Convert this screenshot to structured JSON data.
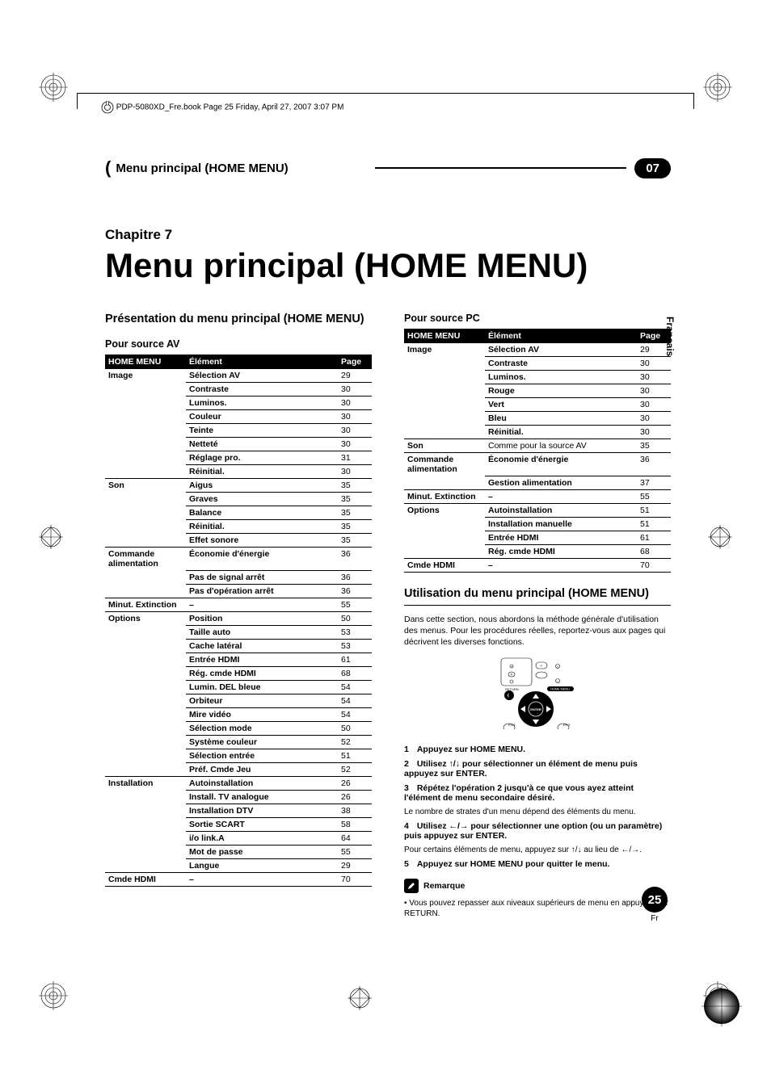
{
  "folio": "PDP-5080XD_Fre.book  Page 25  Friday, April 27, 2007  3:07 PM",
  "section_bar": {
    "title": "Menu principal (HOME MENU)",
    "chapter_num": "07"
  },
  "chapter": {
    "label": "Chapitre 7",
    "title": "Menu principal (HOME MENU)"
  },
  "lang_tab": "Français",
  "left": {
    "heading": "Présentation du menu principal (HOME MENU)",
    "sub_av": "Pour source AV",
    "table_av": {
      "cols": [
        "HOME MENU",
        "Élément",
        "Page"
      ],
      "groups": [
        {
          "cat": "Image",
          "rows": [
            [
              "Sélection AV",
              "29"
            ],
            [
              "Contraste",
              "30"
            ],
            [
              "Luminos.",
              "30"
            ],
            [
              "Couleur",
              "30"
            ],
            [
              "Teinte",
              "30"
            ],
            [
              "Netteté",
              "30"
            ],
            [
              "Réglage pro.",
              "31"
            ],
            [
              "Réinitial.",
              "30"
            ]
          ]
        },
        {
          "cat": "Son",
          "rows": [
            [
              "Aigus",
              "35"
            ],
            [
              "Graves",
              "35"
            ],
            [
              "Balance",
              "35"
            ],
            [
              "Réinitial.",
              "35"
            ],
            [
              "Effet sonore",
              "35"
            ]
          ]
        },
        {
          "cat": "Commande alimentation",
          "rows": [
            [
              "Économie d'énergie",
              "36"
            ],
            [
              "Pas de signal arrêt",
              "36"
            ],
            [
              "Pas d'opération arrêt",
              "36"
            ]
          ]
        },
        {
          "cat": "Minut. Extinction",
          "rows": [
            [
              "–",
              "55"
            ]
          ]
        },
        {
          "cat": "Options",
          "rows": [
            [
              "Position",
              "50"
            ],
            [
              "Taille auto",
              "53"
            ],
            [
              "Cache latéral",
              "53"
            ],
            [
              "Entrée HDMI",
              "61"
            ],
            [
              "Rég. cmde HDMI",
              "68"
            ],
            [
              "Lumin. DEL bleue",
              "54"
            ],
            [
              "Orbiteur",
              "54"
            ],
            [
              "Mire vidéo",
              "54"
            ],
            [
              "Sélection mode",
              "50"
            ],
            [
              "Système couleur",
              "52"
            ],
            [
              "Sélection entrée",
              "51"
            ],
            [
              "Préf. Cmde Jeu",
              "52"
            ]
          ]
        },
        {
          "cat": "Installation",
          "rows": [
            [
              "Autoinstallation",
              "26"
            ],
            [
              "Install. TV analogue",
              "26"
            ],
            [
              "Installation DTV",
              "38"
            ],
            [
              "Sortie SCART",
              "58"
            ],
            [
              "i/o link.A",
              "64"
            ],
            [
              "Mot de passe",
              "55"
            ],
            [
              "Langue",
              "29"
            ]
          ]
        },
        {
          "cat": "Cmde HDMI",
          "rows": [
            [
              "–",
              "70"
            ]
          ]
        }
      ]
    }
  },
  "right": {
    "sub_pc": "Pour source PC",
    "table_pc": {
      "cols": [
        "HOME MENU",
        "Élément",
        "Page"
      ],
      "groups": [
        {
          "cat": "Image",
          "rows": [
            [
              "Sélection AV",
              "29"
            ],
            [
              "Contraste",
              "30"
            ],
            [
              "Luminos.",
              "30"
            ],
            [
              "Rouge",
              "30"
            ],
            [
              "Vert",
              "30"
            ],
            [
              "Bleu",
              "30"
            ],
            [
              "Réinitial.",
              "30"
            ]
          ]
        },
        {
          "cat": "Son",
          "rows": [
            [
              "Comme pour la source AV",
              "35"
            ]
          ],
          "plain": true
        },
        {
          "cat": "Commande alimentation",
          "rows": [
            [
              "Économie d'énergie",
              "36"
            ],
            [
              "Gestion alimentation",
              "37"
            ]
          ]
        },
        {
          "cat": "Minut. Extinction",
          "rows": [
            [
              "–",
              "55"
            ]
          ]
        },
        {
          "cat": "Options",
          "rows": [
            [
              "Autoinstallation",
              "51"
            ],
            [
              "Installation manuelle",
              "51"
            ],
            [
              "Entrée HDMI",
              "61"
            ],
            [
              "Rég. cmde HDMI",
              "68"
            ]
          ]
        },
        {
          "cat": "Cmde HDMI",
          "rows": [
            [
              "–",
              "70"
            ]
          ]
        }
      ]
    },
    "usage_heading": "Utilisation du menu principal (HOME MENU)",
    "intro": "Dans cette section, nous abordons la méthode générale d'utilisation des menus. Pour les procédures réelles, reportez-vous aux pages qui décrivent les diverses fonctions.",
    "remote_labels": {
      "return": "RETURN",
      "home": "HOME MENU",
      "enter": "ENTER",
      "exit": "EXIT",
      "epg": "EPG"
    },
    "steps": [
      {
        "n": "1",
        "t": "Appuyez sur HOME MENU."
      },
      {
        "n": "2",
        "t": "Utilisez ↑/↓ pour sélectionner un élément de menu puis appuyez sur ENTER."
      },
      {
        "n": "3",
        "t": "Répétez l'opération 2 jusqu'à ce que vous ayez atteint l'élément de menu secondaire désiré.",
        "note": "Le nombre de strates d'un menu dépend des éléments du menu."
      },
      {
        "n": "4",
        "t": "Utilisez ←/→ pour sélectionner une option (ou un paramètre) puis appuyez sur ENTER.",
        "note": "Pour certains éléments de menu, appuyez sur ↑/↓ au lieu de ←/→."
      },
      {
        "n": "5",
        "t": "Appuyez sur HOME MENU pour quitter le menu."
      }
    ],
    "remark_label": "Remarque",
    "remark_body": "• Vous pouvez repasser aux niveaux supérieurs de menu en appuyant sur RETURN."
  },
  "page_badge": {
    "num": "25",
    "lang": "Fr"
  },
  "colors": {
    "black": "#000000",
    "white": "#ffffff",
    "gray_rule": "#000000"
  }
}
